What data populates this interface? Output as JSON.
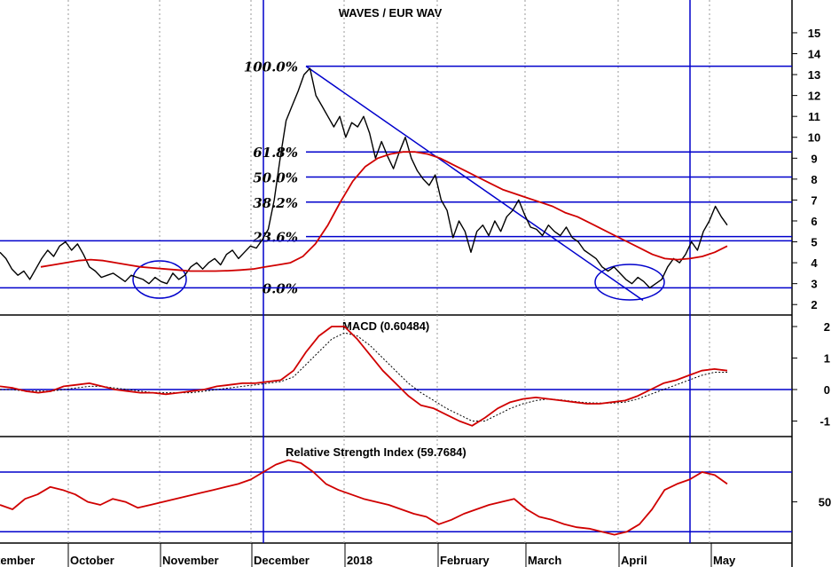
{
  "chart_data": [
    {
      "type": "line",
      "title": "WAVES / EUR WAV",
      "ylim": [
        1.5,
        16
      ],
      "yticks": [
        "2",
        "3",
        "4",
        "5",
        "6",
        "7",
        "8",
        "9",
        "10",
        "11",
        "12",
        "13",
        "14",
        "15"
      ],
      "fib_levels": [
        {
          "label": "100.0%",
          "value": 13.4
        },
        {
          "label": "61.8%",
          "value": 9.3
        },
        {
          "label": "50.0%",
          "value": 8.1
        },
        {
          "label": "38.2%",
          "value": 6.9
        },
        {
          "label": "23.6%",
          "value": 5.25
        },
        {
          "label": "0.0%",
          "value": 2.8
        }
      ],
      "horizontal_lines": [
        5.05
      ],
      "series": [
        {
          "values": [
            4.5,
            4.2,
            3.7,
            3.4,
            3.6,
            3.2,
            3.7,
            4.2,
            4.6,
            4.3,
            4.8,
            5.0,
            4.6,
            4.9,
            4.4,
            3.8,
            3.6,
            3.3,
            3.4,
            3.5,
            3.3,
            3.1,
            3.4,
            3.3,
            3.2,
            3.0,
            3.3,
            3.1,
            3.0,
            3.5,
            3.2,
            3.4,
            3.8,
            4.0,
            3.7,
            4.0,
            4.2,
            3.9,
            4.4,
            4.6,
            4.2,
            4.5,
            4.8,
            4.7,
            5.1,
            5.6,
            7.0,
            9.0,
            10.8,
            11.5,
            12.2,
            13.0,
            13.3,
            12.0,
            11.5,
            11.0,
            10.5,
            11.0,
            10.0,
            10.7,
            10.5,
            11.0,
            10.2,
            9.0,
            9.8,
            9.1,
            8.5,
            9.3,
            10.0,
            9.0,
            8.4,
            8.0,
            7.7,
            8.2,
            7.0,
            6.5,
            5.2,
            6.0,
            5.5,
            4.5,
            5.5,
            5.8,
            5.3,
            6.0,
            5.5,
            6.2,
            6.5,
            7.0,
            6.3,
            5.7,
            5.6,
            5.3,
            5.8,
            5.5,
            5.3,
            5.7,
            5.2,
            5.0,
            4.6,
            4.4,
            4.2,
            3.8,
            3.6,
            3.8,
            3.5,
            3.2,
            3.0,
            3.3,
            3.1,
            2.8,
            3.0,
            3.2,
            3.8,
            4.2,
            4.0,
            4.4,
            5.0,
            4.6,
            5.5,
            6.0,
            6.7,
            6.2,
            5.8
          ]
        },
        {
          "values": [
            3.8,
            3.9,
            4.0,
            4.1,
            4.15,
            4.1,
            4.0,
            3.9,
            3.8,
            3.75,
            3.7,
            3.65,
            3.6,
            3.6,
            3.6,
            3.62,
            3.65,
            3.7,
            3.8,
            3.9,
            4.0,
            4.3,
            4.9,
            5.8,
            6.9,
            7.9,
            8.6,
            9.0,
            9.2,
            9.3,
            9.3,
            9.2,
            9.0,
            8.7,
            8.4,
            8.1,
            7.8,
            7.5,
            7.3,
            7.1,
            6.9,
            6.7,
            6.4,
            6.2,
            5.9,
            5.6,
            5.3,
            5.0,
            4.7,
            4.4,
            4.2,
            4.15,
            4.2,
            4.3,
            4.5,
            4.8
          ]
        }
      ]
    },
    {
      "type": "line",
      "title": "MACD (0.60484)",
      "ylim": [
        -1.3,
        2.3
      ],
      "yticks": [
        "2",
        "1",
        "0",
        "-1"
      ],
      "horizontal_lines": [
        0
      ],
      "series": [
        {
          "values": [
            0.1,
            0.05,
            -0.05,
            -0.1,
            -0.05,
            0.1,
            0.15,
            0.2,
            0.1,
            0.0,
            -0.05,
            -0.1,
            -0.1,
            -0.15,
            -0.1,
            -0.05,
            0.0,
            0.1,
            0.15,
            0.2,
            0.2,
            0.25,
            0.3,
            0.6,
            1.2,
            1.7,
            2.0,
            2.0,
            1.6,
            1.1,
            0.6,
            0.2,
            -0.2,
            -0.5,
            -0.6,
            -0.8,
            -1.0,
            -1.15,
            -0.9,
            -0.6,
            -0.4,
            -0.3,
            -0.25,
            -0.3,
            -0.35,
            -0.4,
            -0.45,
            -0.45,
            -0.4,
            -0.35,
            -0.2,
            0.0,
            0.2,
            0.3,
            0.45,
            0.6,
            0.65,
            0.6
          ]
        },
        {
          "values": [
            0.0,
            0.0,
            -0.05,
            -0.05,
            -0.05,
            0.0,
            0.05,
            0.1,
            0.1,
            0.05,
            0.0,
            -0.05,
            -0.1,
            -0.1,
            -0.1,
            -0.1,
            -0.05,
            0.0,
            0.05,
            0.1,
            0.15,
            0.2,
            0.25,
            0.4,
            0.8,
            1.2,
            1.6,
            1.8,
            1.7,
            1.4,
            1.0,
            0.6,
            0.2,
            -0.1,
            -0.35,
            -0.6,
            -0.8,
            -1.0,
            -1.0,
            -0.8,
            -0.6,
            -0.45,
            -0.35,
            -0.3,
            -0.33,
            -0.38,
            -0.42,
            -0.43,
            -0.43,
            -0.4,
            -0.3,
            -0.15,
            0.0,
            0.15,
            0.3,
            0.45,
            0.55,
            0.55
          ]
        }
      ]
    },
    {
      "type": "line",
      "title": "Relative Strength Index (59.7684)",
      "ylim": [
        20,
        85
      ],
      "yticks": [
        "50"
      ],
      "horizontal_lines": [
        70,
        30
      ],
      "x_labels": [
        "tember",
        "October",
        "November",
        "December",
        "2018",
        "February",
        "March",
        "April",
        "May"
      ],
      "series": [
        {
          "values": [
            48,
            45,
            52,
            55,
            60,
            58,
            55,
            50,
            48,
            52,
            50,
            46,
            48,
            50,
            52,
            54,
            56,
            58,
            60,
            62,
            65,
            70,
            75,
            78,
            76,
            70,
            62,
            58,
            55,
            52,
            50,
            48,
            45,
            42,
            40,
            35,
            38,
            42,
            45,
            48,
            50,
            52,
            45,
            40,
            38,
            35,
            33,
            32,
            30,
            28,
            30,
            35,
            45,
            58,
            62,
            65,
            70,
            68,
            62
          ]
        }
      ]
    }
  ]
}
